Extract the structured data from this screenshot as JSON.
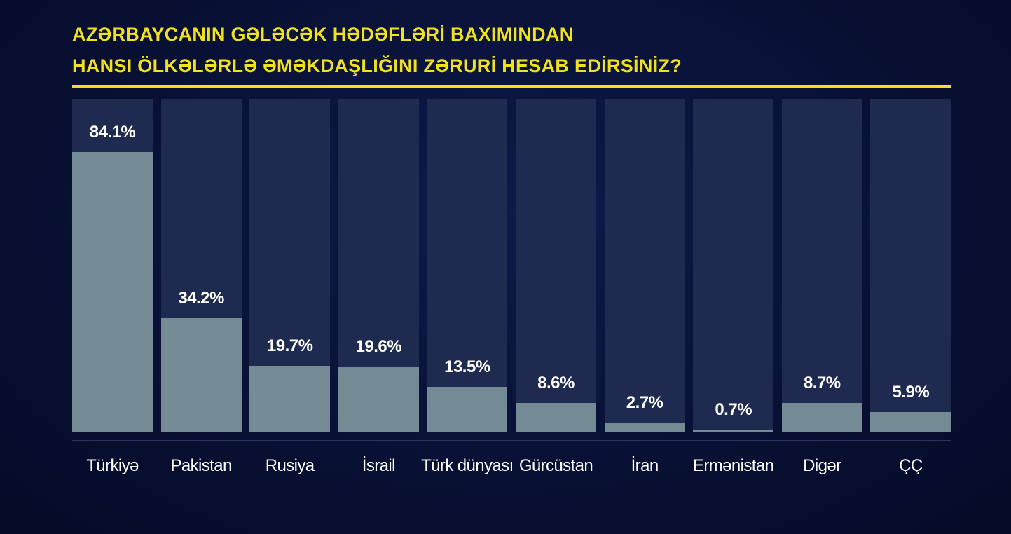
{
  "chart_data": {
    "type": "bar",
    "title": [
      "AZƏRBAYCANIN GƏLƏCƏK HƏDƏFLƏRİ BAXIMINDAN",
      "HANSI ÖLKƏLƏRLƏ ƏMƏKDAŞLIĞINI ZƏRURİ HESAB EDİRSİNİZ?"
    ],
    "categories": [
      "Türkiyə",
      "Pakistan",
      "Rusiya",
      "İsrail",
      "Türk dünyası",
      "Gürcüstan",
      "İran",
      "Ermənistan",
      "Digər",
      "ÇÇ"
    ],
    "values": [
      84.1,
      34.2,
      19.7,
      19.6,
      13.5,
      8.6,
      2.7,
      0.7,
      8.7,
      5.9
    ],
    "value_labels": [
      "84.1%",
      "34.2%",
      "19.7%",
      "19.6%",
      "13.5%",
      "8.6%",
      "2.7%",
      "0.7%",
      "8.7%",
      "5.9%"
    ],
    "color": "#748a94",
    "ylim": [
      0,
      100
    ]
  }
}
